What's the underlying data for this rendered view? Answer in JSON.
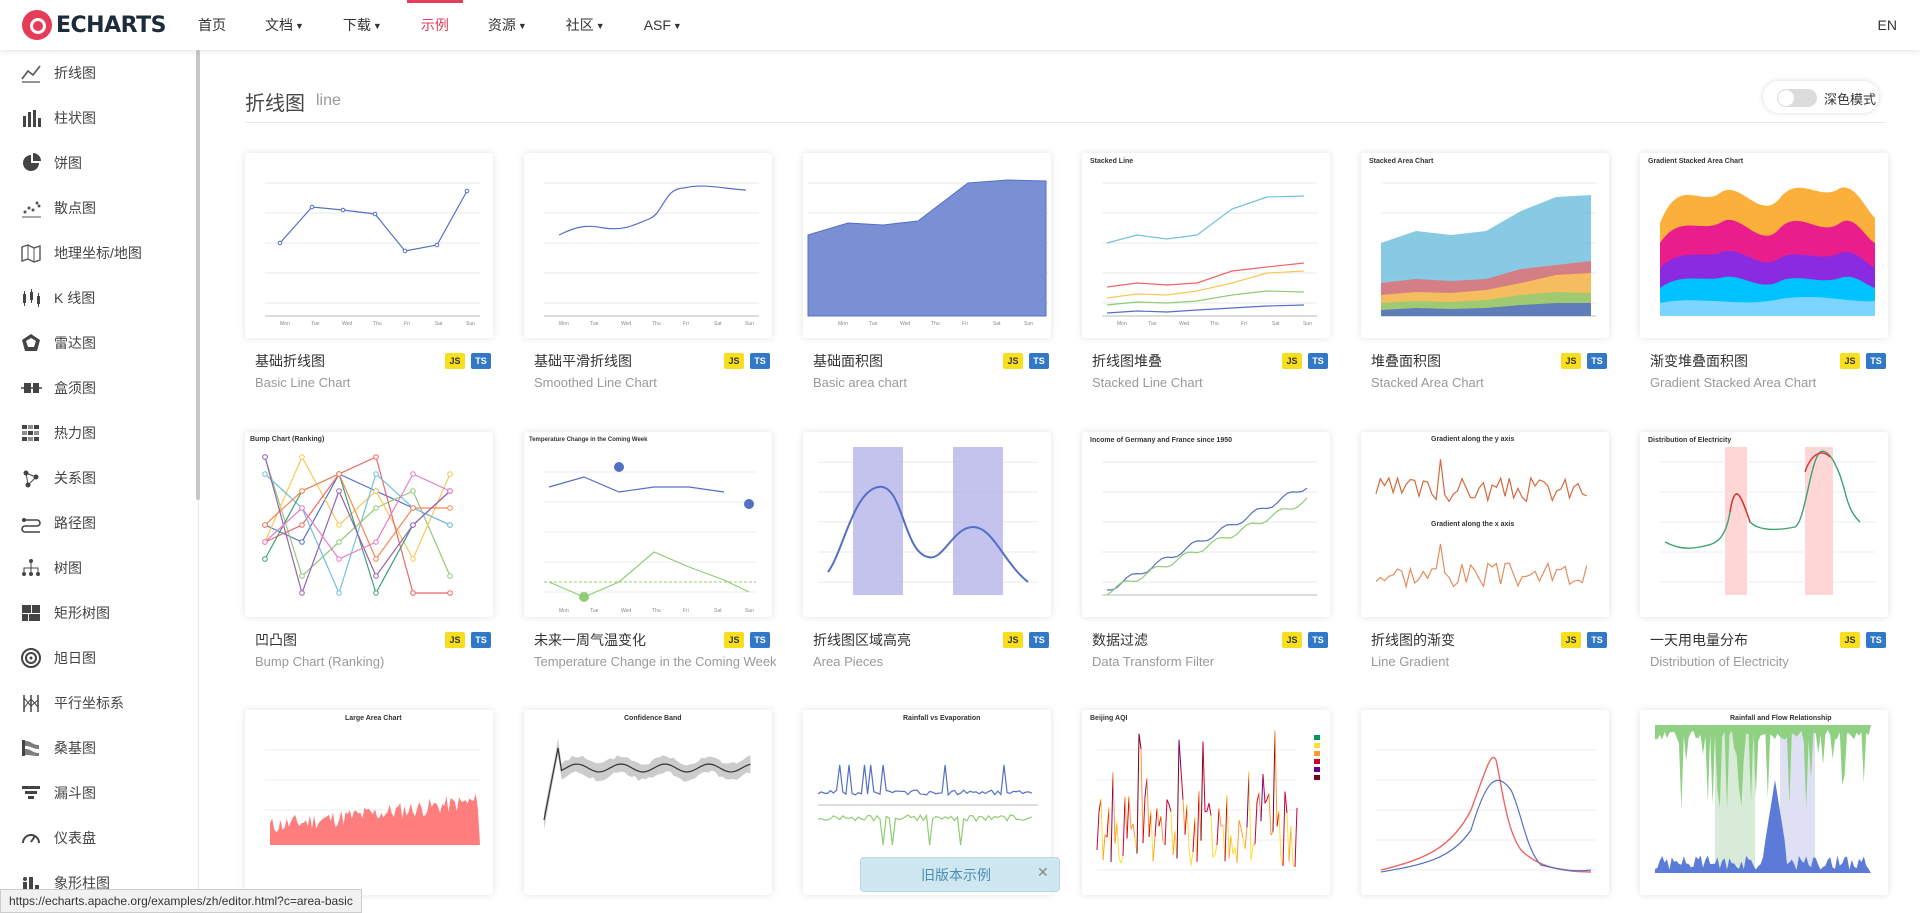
{
  "nav": {
    "logo_text": "ECHARTS",
    "items": [
      {
        "label": "首页",
        "dropdown": false
      },
      {
        "label": "文档",
        "dropdown": true
      },
      {
        "label": "下载",
        "dropdown": true
      },
      {
        "label": "示例",
        "dropdown": false,
        "active": true
      },
      {
        "label": "资源",
        "dropdown": true
      },
      {
        "label": "社区",
        "dropdown": true
      },
      {
        "label": "ASF",
        "dropdown": true
      }
    ],
    "lang": "EN"
  },
  "sidebar": {
    "items": [
      {
        "label": "折线图",
        "icon": "line-chart-icon"
      },
      {
        "label": "柱状图",
        "icon": "bar-chart-icon"
      },
      {
        "label": "饼图",
        "icon": "pie-chart-icon"
      },
      {
        "label": "散点图",
        "icon": "scatter-chart-icon"
      },
      {
        "label": "地理坐标/地图",
        "icon": "map-icon"
      },
      {
        "label": "K 线图",
        "icon": "candlestick-icon"
      },
      {
        "label": "雷达图",
        "icon": "radar-icon"
      },
      {
        "label": "盒须图",
        "icon": "boxplot-icon"
      },
      {
        "label": "热力图",
        "icon": "heatmap-icon"
      },
      {
        "label": "关系图",
        "icon": "graph-icon"
      },
      {
        "label": "路径图",
        "icon": "lines-icon"
      },
      {
        "label": "树图",
        "icon": "tree-icon"
      },
      {
        "label": "矩形树图",
        "icon": "treemap-icon"
      },
      {
        "label": "旭日图",
        "icon": "sunburst-icon"
      },
      {
        "label": "平行坐标系",
        "icon": "parallel-icon"
      },
      {
        "label": "桑基图",
        "icon": "sankey-icon"
      },
      {
        "label": "漏斗图",
        "icon": "funnel-icon"
      },
      {
        "label": "仪表盘",
        "icon": "gauge-icon"
      },
      {
        "label": "象形柱图",
        "icon": "pictorial-bar-icon"
      }
    ]
  },
  "main": {
    "title": "折线图",
    "subtitle": "line",
    "dark_mode_label": "深色模式",
    "dark_mode_on": false,
    "tags": {
      "js": "JS",
      "ts": "TS"
    },
    "cards": [
      {
        "title": "基础折线图",
        "subtitle": "Basic Line Chart"
      },
      {
        "title": "基础平滑折线图",
        "subtitle": "Smoothed Line Chart"
      },
      {
        "title": "基础面积图",
        "subtitle": "Basic area chart"
      },
      {
        "title": "折线图堆叠",
        "subtitle": "Stacked Line Chart"
      },
      {
        "title": "堆叠面积图",
        "subtitle": "Stacked Area Chart"
      },
      {
        "title": "渐变堆叠面积图",
        "subtitle": "Gradient Stacked Area Chart"
      },
      {
        "title": "凹凸图",
        "subtitle": "Bump Chart (Ranking)"
      },
      {
        "title": "未来一周气温变化",
        "subtitle": "Temperature Change in the Coming Week"
      },
      {
        "title": "折线图区域高亮",
        "subtitle": "Area Pieces"
      },
      {
        "title": "数据过滤",
        "subtitle": "Data Transform Filter"
      },
      {
        "title": "折线图的渐变",
        "subtitle": "Line Gradient"
      },
      {
        "title": "一天用电量分布",
        "subtitle": "Distribution of Electricity"
      }
    ],
    "thumb_headings": {
      "stacked_line": "Stacked Line",
      "stacked_area": "Stacked Area Chart",
      "gradient_stacked": "Gradient Stacked Area Chart",
      "bump": "Bump Chart (Ranking)",
      "temperature": "Temperature Change in the Coming Week",
      "income": "Income of Germany and France since 1950",
      "gradient_y": "Gradient along the y axis",
      "gradient_x": "Gradient along the x axis",
      "electricity": "Distribution of Electricity",
      "large_area": "Large Area Chart",
      "confidence": "Confidence Band",
      "rainfall_evap": "Rainfall vs Evaporation",
      "beijing": "Beijing AQI",
      "rainfall_flow": "Rainfall and Flow Relationship"
    },
    "week_days": [
      "Mon",
      "Tue",
      "Wed",
      "Thu",
      "Fri",
      "Sat",
      "Sun"
    ]
  },
  "status_url": "https://echarts.apache.org/examples/zh/editor.html?c=area-basic",
  "old_version_label": "旧版本示例"
}
